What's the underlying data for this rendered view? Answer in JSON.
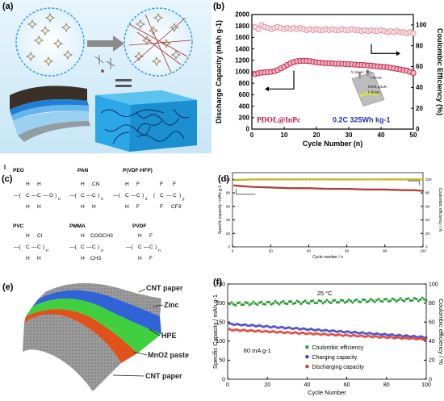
{
  "panel_labels": {
    "a": "(a)",
    "b": "(b)",
    "c": "(c)",
    "d": "(d)",
    "e": "(e)",
    "f": "(f)"
  },
  "panel_a": {
    "colors": {
      "sky": "#d4ecf8",
      "gel": "#2aa7e6",
      "film_dark": "#3a3028",
      "film_blue": "#1e7fd6",
      "arrow": "#7a7a7a"
    }
  },
  "panel_c": {
    "polymers": [
      "PEO",
      "PAN",
      "P(VDF-HFP)",
      "PVC",
      "PMMA",
      "PVDF"
    ],
    "groups": {
      "cn": "CN",
      "cf3": "CF3",
      "cl": "Cl",
      "cooch3": "COOCH3",
      "ch3": "CH3"
    }
  },
  "panel_e": {
    "labels": [
      "CNT paper",
      "Zinc",
      "HPE",
      "MnO2 paste",
      "CNT paper"
    ],
    "colors": {
      "cnt": "#8f8f8f",
      "zinc": "#2f63d6",
      "hpe": "#3fcf3f",
      "mno2": "#e0521c"
    }
  },
  "chart_data": [
    {
      "type": "scatter",
      "panel": "b",
      "xlabel": "Cycle Number (n)",
      "ylabel_left": "Discharge Capacity (mAh g-1)",
      "ylabel_right": "Coulombic Efficiency (%)",
      "xlim": [
        0,
        50
      ],
      "ylim_left": [
        0,
        2000
      ],
      "ylim_right": [
        0,
        110
      ],
      "xticks": [
        0,
        10,
        20,
        30,
        40,
        50
      ],
      "yticks_left": [
        0,
        200,
        400,
        600,
        800,
        1000,
        1200,
        1400,
        1600,
        1800,
        2000
      ],
      "yticks_right": [
        0,
        20,
        40,
        60,
        80,
        100
      ],
      "annotations": [
        "PDOL@InPc",
        "0.2C 325Wh kg-1"
      ],
      "inset_labels": [
        "Al plastic film",
        "Cathode",
        "PDOL@InPc",
        "Lithium"
      ],
      "series": [
        {
          "axis": "left",
          "color": "#c0163c",
          "x_start": 1,
          "x_end": 50,
          "values": [
            960,
            975,
            985,
            990,
            995,
            1000,
            1010,
            1030,
            1060,
            1090,
            1120,
            1150,
            1170,
            1185,
            1190,
            1192,
            1190,
            1185,
            1175,
            1165,
            1160,
            1155,
            1150,
            1150,
            1145,
            1140,
            1140,
            1140,
            1135,
            1130,
            1130,
            1125,
            1120,
            1120,
            1115,
            1110,
            1105,
            1100,
            1095,
            1090,
            1085,
            1080,
            1070,
            1060,
            1050,
            1040,
            1030,
            1020,
            1000,
            980
          ]
        },
        {
          "axis": "right",
          "color": "#e08a9a",
          "x_start": 1,
          "x_end": 50,
          "values": [
            98,
            96,
            100,
            98,
            97,
            96,
            97,
            98,
            97,
            96,
            97,
            96,
            97,
            96,
            97,
            96,
            95,
            96,
            95,
            96,
            95,
            95,
            96,
            95,
            96,
            95,
            95,
            96,
            95,
            95,
            96,
            95,
            95,
            94,
            95,
            94,
            95,
            94,
            94,
            95,
            94,
            93,
            94,
            93,
            94,
            93,
            93,
            92,
            93,
            92
          ]
        }
      ]
    },
    {
      "type": "line",
      "panel": "d",
      "xlabel": "Cycle number / n",
      "ylabel_left": "Specific capacity / mAh g-1",
      "ylabel_right": "Coulombic efficiency / %",
      "xlim": [
        0,
        100
      ],
      "ylim_left": [
        0,
        110
      ],
      "ylim_right": [
        0,
        110
      ],
      "xticks": [
        0,
        20,
        40,
        60,
        80,
        100
      ],
      "yticks_left": [
        0,
        20,
        40,
        60,
        80,
        100
      ],
      "yticks_right": [
        0,
        20,
        40,
        60,
        80,
        100
      ],
      "series": [
        {
          "axis": "right",
          "color": "#d6c21a",
          "x": [
            1,
            5,
            10,
            20,
            30,
            40,
            50,
            60,
            70,
            80,
            90,
            95,
            100
          ],
          "values": [
            99,
            99.5,
            100,
            100,
            100,
            100,
            100,
            100,
            100,
            100,
            100,
            100,
            100
          ]
        },
        {
          "axis": "left",
          "color": "#c0392b",
          "x": [
            1,
            5,
            10,
            20,
            30,
            40,
            50,
            60,
            70,
            80,
            90,
            95,
            100
          ],
          "values": [
            91,
            90,
            89,
            88,
            87,
            87,
            86,
            86,
            85,
            85,
            84,
            84,
            83
          ]
        }
      ]
    },
    {
      "type": "scatter",
      "panel": "f",
      "xlabel": "Cycle Number",
      "ylabel_left": "Specific Capacity / mAh g-1",
      "ylabel_right": "Coulombic efficiency / %",
      "xlim": [
        0,
        100
      ],
      "ylim_left": [
        0,
        250
      ],
      "ylim_right": [
        0,
        100
      ],
      "xticks": [
        0,
        20,
        40,
        60,
        80,
        100
      ],
      "yticks_left": [
        0,
        50,
        100,
        150,
        200,
        250
      ],
      "yticks_right": [
        0,
        20,
        40,
        60,
        80,
        100
      ],
      "annotations": [
        "25 °C",
        "60 mA g-1"
      ],
      "legend_position": "bottom-center",
      "series": [
        {
          "name": "Coulombic efficiency",
          "axis": "right",
          "color": "#2e9e3a",
          "x_start": 1,
          "x_end": 100,
          "start": 79,
          "end": 84
        },
        {
          "name": "Charging capacity",
          "axis": "left",
          "color": "#3a3fbf",
          "x_start": 1,
          "x_end": 100,
          "start": 145,
          "end": 110
        },
        {
          "name": "Discharging capacity",
          "axis": "left",
          "color": "#d93a2a",
          "x_start": 1,
          "x_end": 100,
          "start": 130,
          "end": 105
        }
      ]
    }
  ]
}
